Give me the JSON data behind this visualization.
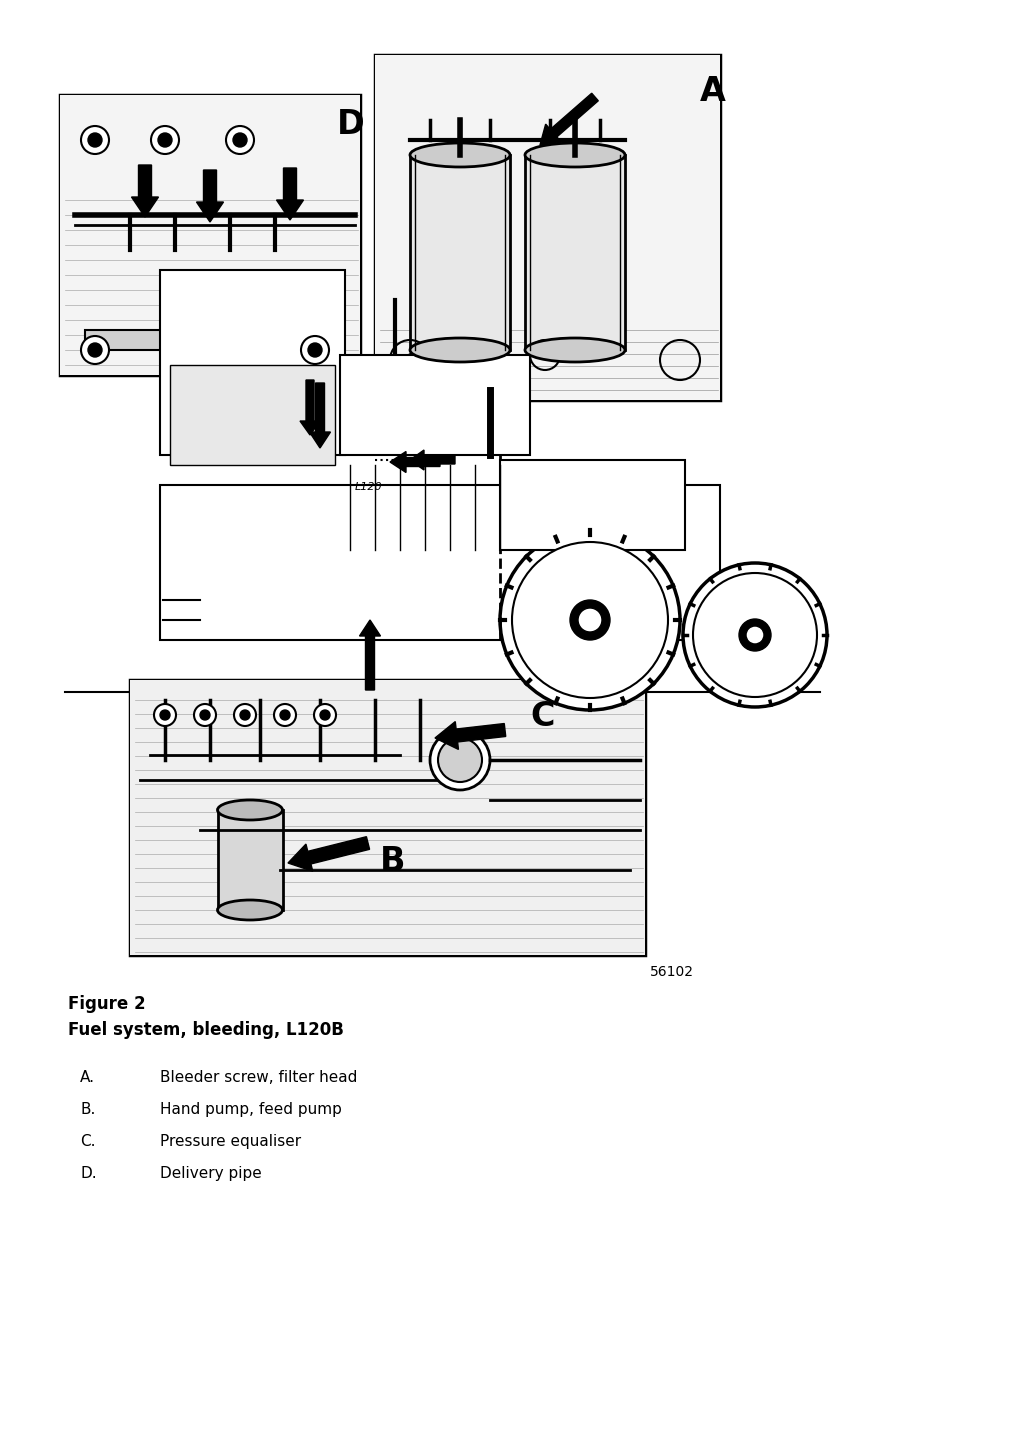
{
  "figure_title": "Figure 2",
  "figure_subtitle": "Fuel system, bleeding, L120B",
  "caption_items": [
    {
      "label": "A.",
      "text": "Bleeder screw, filter head"
    },
    {
      "label": "B.",
      "text": "Hand pump, feed pump"
    },
    {
      "label": "C.",
      "text": "Pressure equaliser"
    },
    {
      "label": "D.",
      "text": "Delivery pipe"
    }
  ],
  "ref_number": "56102",
  "bg_color": "#ffffff",
  "text_color": "#000000",
  "fig_width": 10.24,
  "fig_height": 14.49,
  "dpi": 100
}
